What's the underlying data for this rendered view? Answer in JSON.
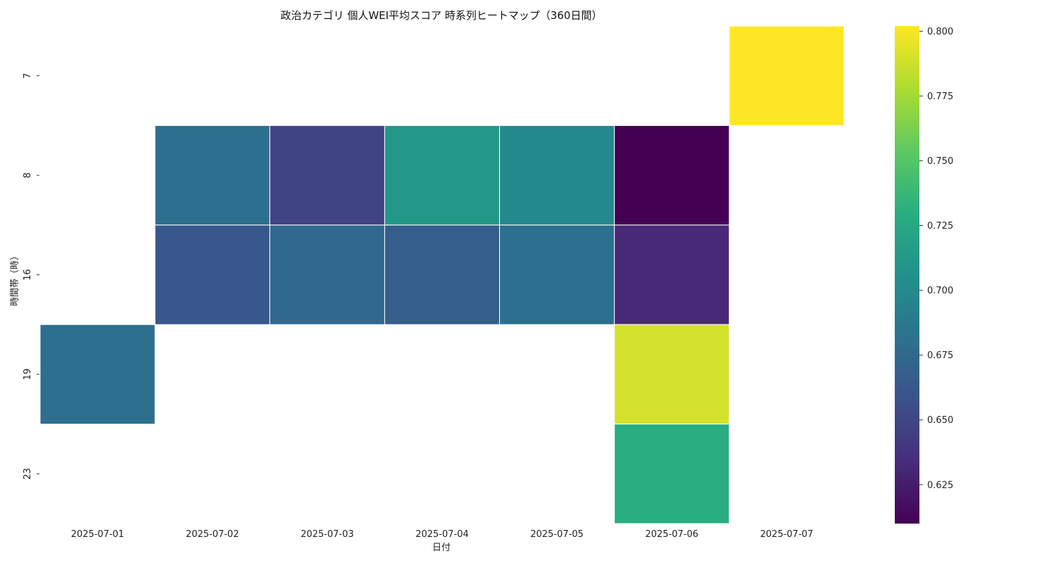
{
  "chart_data": {
    "type": "heatmap",
    "title": "政治カテゴリ 個人WEI平均スコア 時系列ヒートマップ（360日間）",
    "xlabel": "日付",
    "ylabel": "時間帯（時）",
    "x_categories": [
      "2025-07-01",
      "2025-07-02",
      "2025-07-03",
      "2025-07-04",
      "2025-07-05",
      "2025-07-06",
      "2025-07-07"
    ],
    "y_categories": [
      "7",
      "8",
      "16",
      "19",
      "23"
    ],
    "values": [
      [
        null,
        null,
        null,
        null,
        null,
        null,
        0.802
      ],
      [
        null,
        0.68,
        0.648,
        0.712,
        0.7,
        0.61,
        null
      ],
      [
        null,
        0.662,
        0.675,
        0.667,
        0.68,
        0.632,
        null
      ],
      [
        0.68,
        null,
        null,
        null,
        null,
        0.79,
        null
      ],
      [
        null,
        null,
        null,
        null,
        null,
        0.73,
        null
      ]
    ],
    "colormap": "viridis",
    "vmin": 0.61,
    "vmax": 0.802,
    "colorbar_ticks": [
      "0.625",
      "0.650",
      "0.675",
      "0.700",
      "0.725",
      "0.750",
      "0.775",
      "0.800"
    ]
  }
}
